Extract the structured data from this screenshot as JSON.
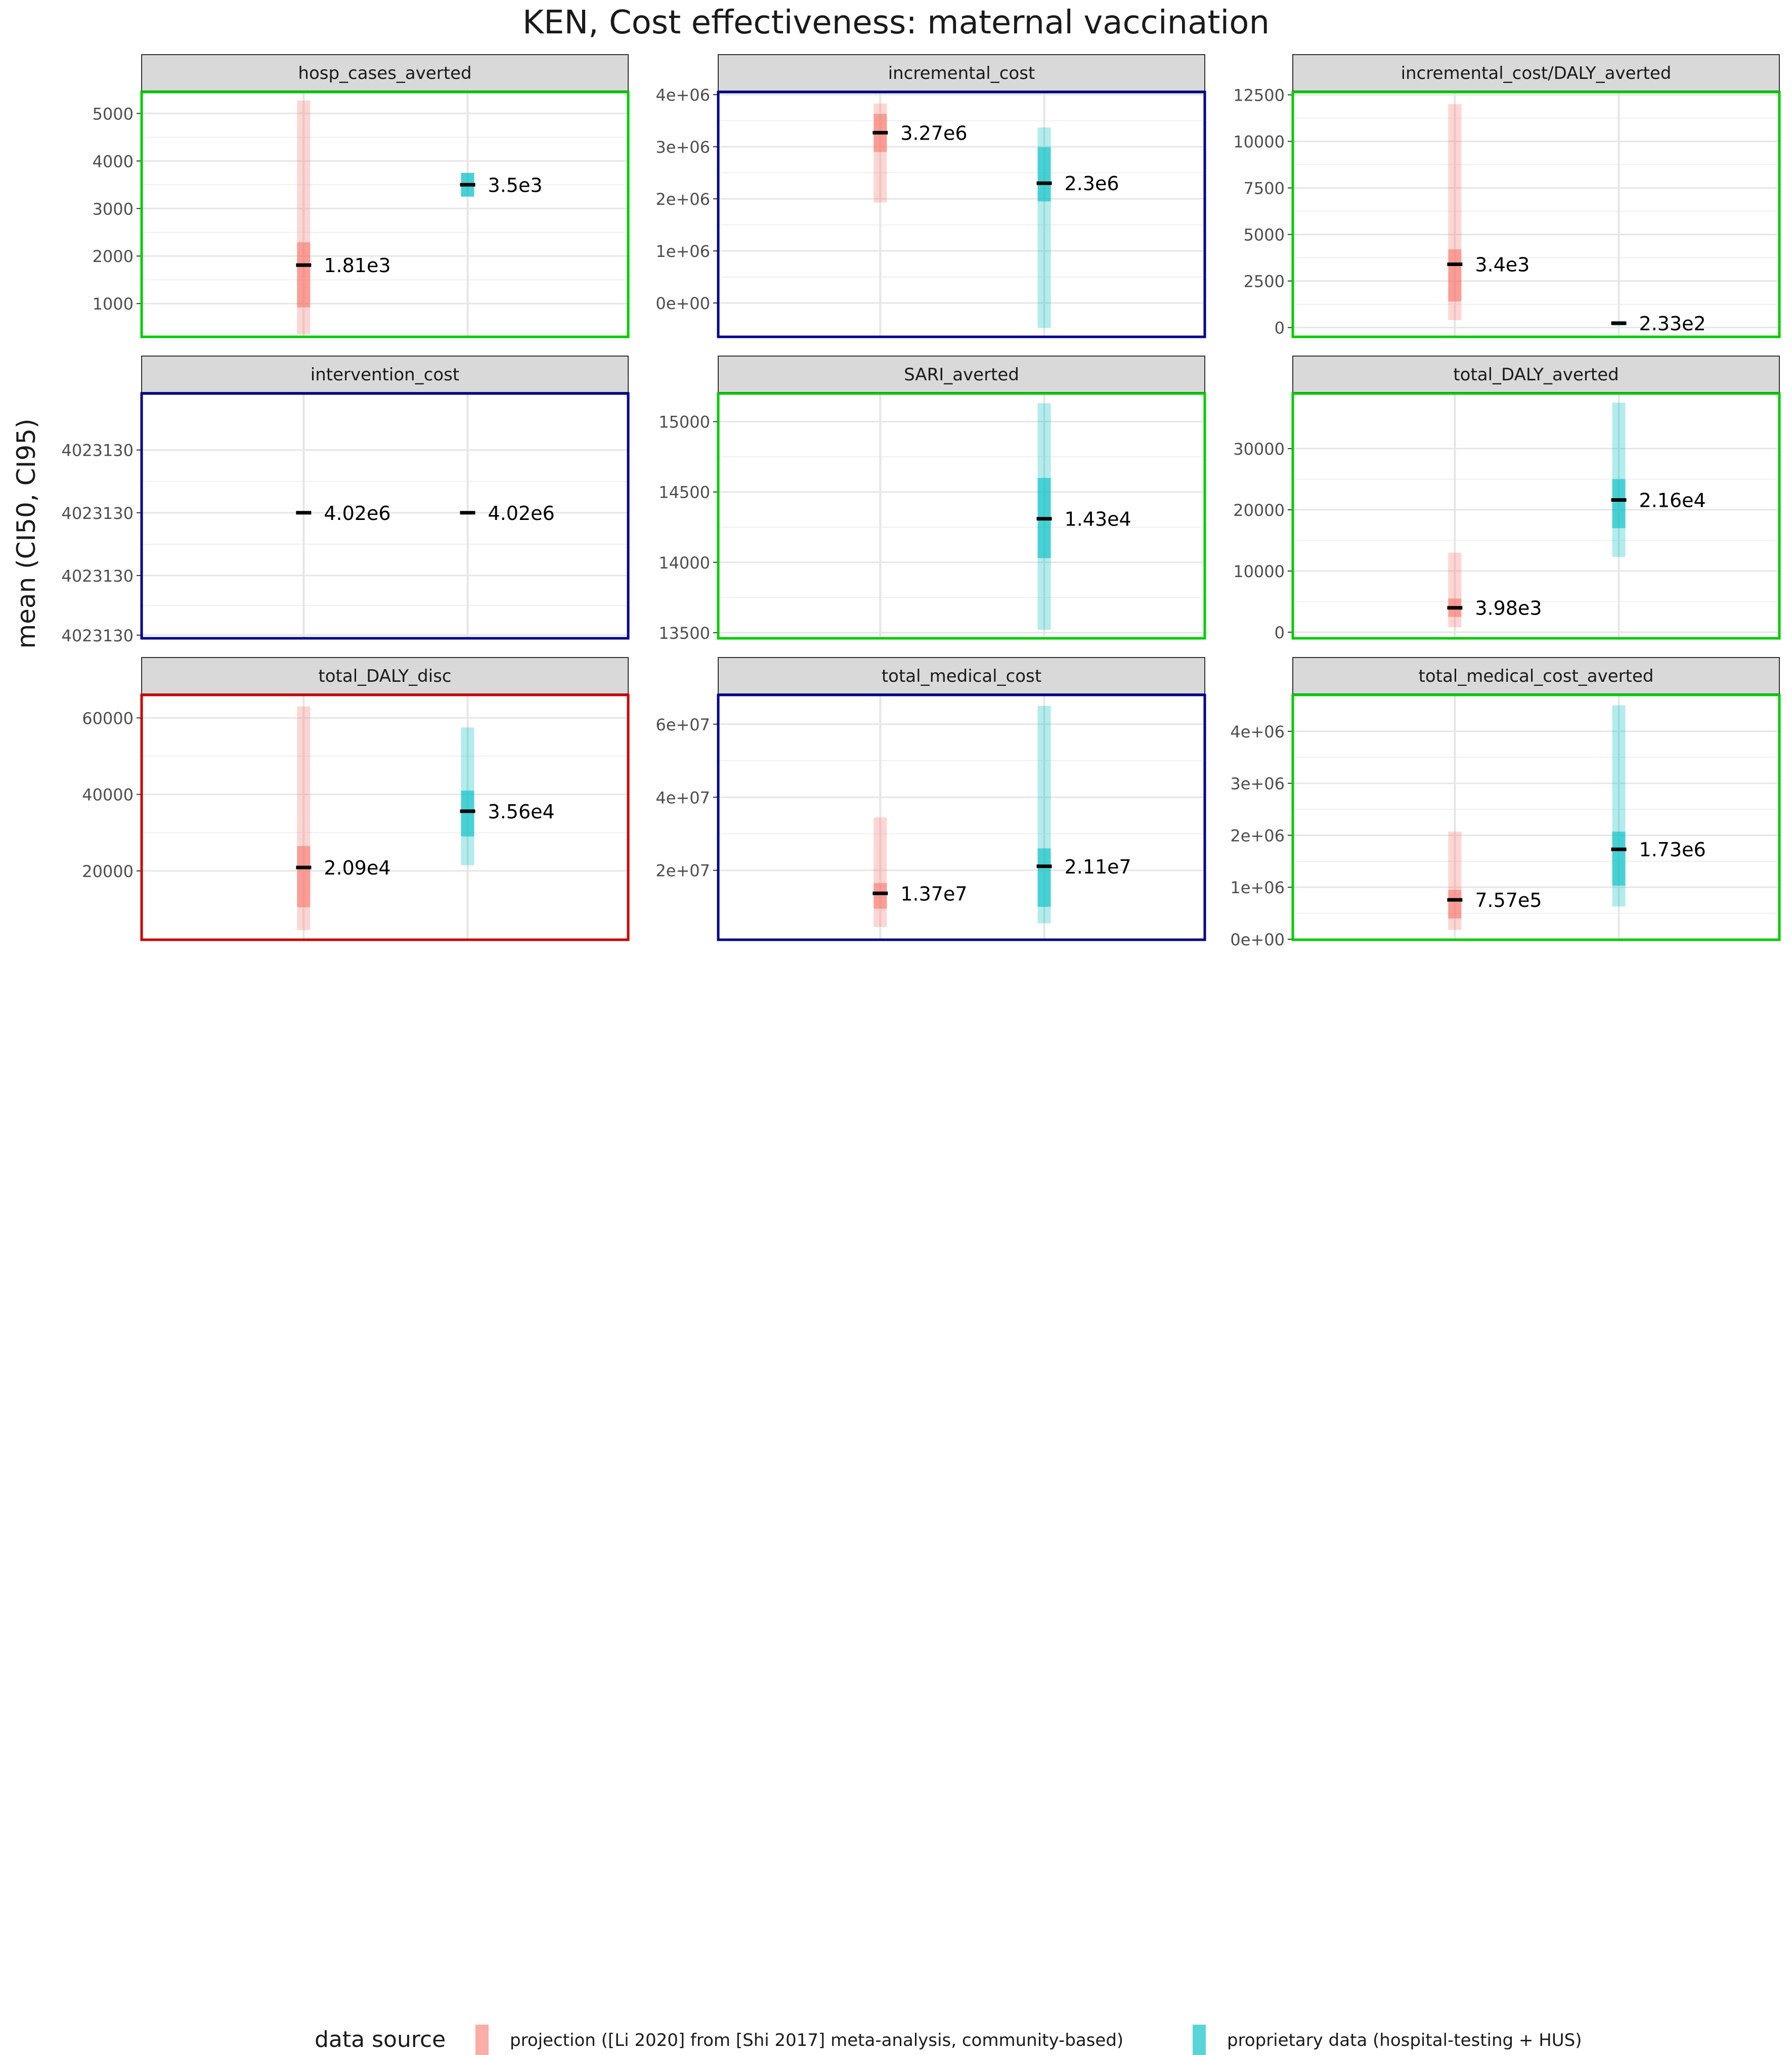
{
  "title": "KEN, Cost effectiveness: maternal vaccination",
  "ylabel": "mean (CI50, CI95)",
  "legend": {
    "title": "data source",
    "items": [
      {
        "label": "projection ([Li 2020] from [Shi 2017] meta-analysis, community-based)",
        "color": "#F8766D"
      },
      {
        "label": "proprietary data (hospital-testing + HUS)",
        "color": "#00BFC4"
      }
    ]
  },
  "colors": {
    "red_border": "#cc0000",
    "green_border": "#00cc00",
    "blue_border": "#00008b",
    "strip": "#d9d9d9"
  },
  "chart_data": [
    {
      "type": "errorbar",
      "title": "hosp_cases_averted",
      "border": "green",
      "ylim": [
        300,
        5450
      ],
      "ticks": [
        1000,
        2000,
        3000,
        4000,
        5000
      ],
      "tick_labels": [
        "1000",
        "2000",
        "3000",
        "4000",
        "5000"
      ],
      "series": [
        {
          "name": "projection",
          "mean": 1810,
          "ci50": [
            920,
            2290
          ],
          "ci95": [
            350,
            5270
          ],
          "label": "1.81e3"
        },
        {
          "name": "proprietary",
          "mean": 3500,
          "ci50": [
            3250,
            3750
          ],
          "ci95": [
            3250,
            3750
          ],
          "label": "3.5e3"
        }
      ]
    },
    {
      "type": "errorbar",
      "title": "incremental_cost",
      "border": "blue",
      "ylim": [
        -650000,
        4050000
      ],
      "ticks": [
        0,
        1000000,
        2000000,
        3000000,
        4000000
      ],
      "tick_labels": [
        "0e+00",
        "1e+06",
        "2e+06",
        "3e+06",
        "4e+06"
      ],
      "series": [
        {
          "name": "projection",
          "mean": 3270000,
          "ci50": [
            2900000,
            3630000
          ],
          "ci95": [
            1930000,
            3830000
          ],
          "label": "3.27e6"
        },
        {
          "name": "proprietary",
          "mean": 2300000,
          "ci50": [
            1950000,
            2990000
          ],
          "ci95": [
            -480000,
            3370000
          ],
          "label": "2.3e6"
        }
      ]
    },
    {
      "type": "errorbar",
      "title": "incremental_cost/DALY_averted",
      "border": "green",
      "ylim": [
        -500,
        12650
      ],
      "ticks": [
        0,
        2500,
        5000,
        7500,
        10000,
        12500
      ],
      "tick_labels": [
        "0",
        "2500",
        "5000",
        "7500",
        "10000",
        "12500"
      ],
      "series": [
        {
          "name": "projection",
          "mean": 3400,
          "ci50": [
            1400,
            4200
          ],
          "ci95": [
            400,
            12000
          ],
          "label": "3.4e3"
        },
        {
          "name": "proprietary",
          "mean": 233,
          "ci50": [
            130,
            330
          ],
          "ci95": [
            100,
            360
          ],
          "label": "2.33e2"
        }
      ]
    },
    {
      "type": "errorbar",
      "title": "intervention_cost",
      "border": "blue",
      "ylim": [
        0,
        3.9
      ],
      "ticks": [
        0.05,
        1.0,
        2.0,
        3.0
      ],
      "tick_labels": [
        "4023130",
        "4023130",
        "4023130",
        "4023130"
      ],
      "series": [
        {
          "name": "projection",
          "mean": 2.0,
          "ci50": [
            2.0,
            2.0
          ],
          "ci95": [
            2.0,
            2.0
          ],
          "label": "4.02e6"
        },
        {
          "name": "proprietary",
          "mean": 2.0,
          "ci50": [
            2.0,
            2.0
          ],
          "ci95": [
            2.0,
            2.0
          ],
          "label": "4.02e6"
        }
      ]
    },
    {
      "type": "errorbar",
      "title": "SARI_averted",
      "border": "green",
      "ylim": [
        13460,
        15200
      ],
      "ticks": [
        13500,
        14000,
        14500,
        15000
      ],
      "tick_labels": [
        "13500",
        "14000",
        "14500",
        "15000"
      ],
      "series": [
        {
          "name": "proprietary",
          "mean": 14310,
          "ci50": [
            14030,
            14600
          ],
          "ci95": [
            13520,
            15130
          ],
          "label": "1.43e4"
        }
      ]
    },
    {
      "type": "errorbar",
      "title": "total_DALY_averted",
      "border": "green",
      "ylim": [
        -1000,
        39000
      ],
      "ticks": [
        0,
        10000,
        20000,
        30000
      ],
      "tick_labels": [
        "0",
        "10000",
        "20000",
        "30000"
      ],
      "series": [
        {
          "name": "projection",
          "mean": 3980,
          "ci50": [
            2500,
            5500
          ],
          "ci95": [
            800,
            13000
          ],
          "label": "3.98e3"
        },
        {
          "name": "proprietary",
          "mean": 21600,
          "ci50": [
            17000,
            25000
          ],
          "ci95": [
            12300,
            37500
          ],
          "label": "2.16e4"
        }
      ]
    },
    {
      "type": "errorbar",
      "title": "total_DALY_disc",
      "border": "red",
      "ylim": [
        2000,
        66000
      ],
      "ticks": [
        20000,
        40000,
        60000
      ],
      "tick_labels": [
        "20000",
        "40000",
        "60000"
      ],
      "series": [
        {
          "name": "projection",
          "mean": 20900,
          "ci50": [
            10500,
            26500
          ],
          "ci95": [
            4500,
            63000
          ],
          "label": "2.09e4"
        },
        {
          "name": "proprietary",
          "mean": 35600,
          "ci50": [
            29000,
            41000
          ],
          "ci95": [
            21500,
            57500
          ],
          "label": "3.56e4"
        }
      ]
    },
    {
      "type": "errorbar",
      "title": "total_medical_cost",
      "border": "blue",
      "ylim": [
        1000000,
        68000000
      ],
      "ticks": [
        20000000,
        40000000,
        60000000
      ],
      "tick_labels": [
        "2e+07",
        "4e+07",
        "6e+07"
      ],
      "series": [
        {
          "name": "projection",
          "mean": 13700000,
          "ci50": [
            9500000,
            16500000
          ],
          "ci95": [
            4500000,
            34500000
          ],
          "label": "1.37e7"
        },
        {
          "name": "proprietary",
          "mean": 21100000,
          "ci50": [
            10000000,
            26000000
          ],
          "ci95": [
            5500000,
            65000000
          ],
          "label": "2.11e7"
        }
      ]
    },
    {
      "type": "errorbar",
      "title": "total_medical_cost_averted",
      "border": "green",
      "ylim": [
        -10000,
        4700000
      ],
      "ticks": [
        0,
        1000000,
        2000000,
        3000000,
        4000000
      ],
      "tick_labels": [
        "0e+00",
        "1e+06",
        "2e+06",
        "3e+06",
        "4e+06"
      ],
      "series": [
        {
          "name": "projection",
          "mean": 757000,
          "ci50": [
            400000,
            950000
          ],
          "ci95": [
            180000,
            2070000
          ],
          "label": "7.57e5"
        },
        {
          "name": "proprietary",
          "mean": 1730000,
          "ci50": [
            1030000,
            2070000
          ],
          "ci95": [
            630000,
            4500000
          ],
          "label": "1.73e6"
        }
      ]
    }
  ]
}
